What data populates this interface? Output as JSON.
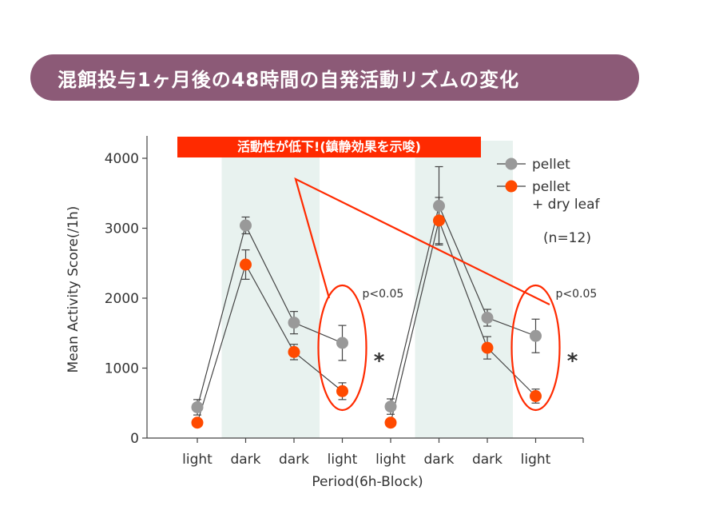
{
  "banner": {
    "title": "混餌投与1ヶ月後の48時間の自発活動リズムの変化"
  },
  "callout": {
    "text": "活動性が低下!(鎮静効果を示唆)"
  },
  "colors": {
    "banner": "#8c5a77",
    "callout": "#ff2a00",
    "pellet": "#999999",
    "pellet_dry_leaf": "#ff4a00",
    "dark_band": "#e8f2ef"
  },
  "chart_data": {
    "type": "line",
    "categories": [
      "light",
      "dark",
      "dark",
      "light",
      "light",
      "dark",
      "dark",
      "light"
    ],
    "xlabel": "Period(6h-Block)",
    "ylabel": "Mean Activity Score(/1h)",
    "ylim": [
      0,
      4000
    ],
    "yticks": [
      0,
      1000,
      2000,
      3000,
      4000
    ],
    "dark_periods": [
      [
        1,
        2
      ],
      [
        5,
        6
      ]
    ],
    "series": [
      {
        "name": "pellet",
        "color": "#999999",
        "values": [
          440,
          3040,
          1650,
          1360,
          450,
          3320,
          1720,
          1460
        ],
        "errors": [
          110,
          120,
          160,
          250,
          110,
          560,
          120,
          240
        ],
        "segments": [
          [
            0,
            3
          ],
          [
            4,
            7
          ]
        ]
      },
      {
        "name": "pellet\n+ dry leaf",
        "color": "#ff4a00",
        "values": [
          220,
          2480,
          1230,
          670,
          220,
          3110,
          1290,
          600
        ],
        "errors": [
          0,
          210,
          110,
          120,
          0,
          330,
          160,
          100
        ],
        "segments": [
          [
            0,
            3
          ],
          [
            4,
            7
          ]
        ]
      }
    ],
    "legend": {
      "position": "top-right",
      "note": "(n=12)"
    },
    "annotations": [
      {
        "text": "p<0.05",
        "target_category_index": 3
      },
      {
        "text": "p<0.05",
        "target_category_index": 7
      },
      {
        "text": "*",
        "target_category_index": 3
      },
      {
        "text": "*",
        "target_category_index": 7
      }
    ]
  }
}
